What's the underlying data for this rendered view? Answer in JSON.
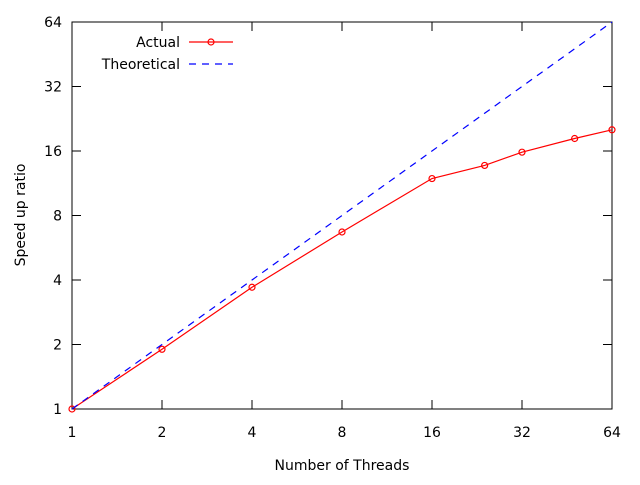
{
  "chart_data": {
    "type": "line",
    "title": "",
    "xlabel": "Number of Threads",
    "ylabel": "Speed up ratio",
    "x_scale": "log2",
    "y_scale": "log2",
    "xlim": [
      1,
      64
    ],
    "ylim": [
      1,
      64
    ],
    "x_ticks": [
      {
        "value": 1,
        "label": "1"
      },
      {
        "value": 2,
        "label": "2"
      },
      {
        "value": 4,
        "label": "4"
      },
      {
        "value": 8,
        "label": "8"
      },
      {
        "value": 16,
        "label": "16"
      },
      {
        "value": 32,
        "label": "32"
      },
      {
        "value": 64,
        "label": "64"
      }
    ],
    "y_ticks": [
      {
        "value": 1,
        "label": "1"
      },
      {
        "value": 2,
        "label": "2"
      },
      {
        "value": 4,
        "label": "4"
      },
      {
        "value": 8,
        "label": "8"
      },
      {
        "value": 16,
        "label": "16"
      },
      {
        "value": 32,
        "label": "32"
      },
      {
        "value": 64,
        "label": "64"
      }
    ],
    "grid": false,
    "legend_position": "top-left",
    "series": [
      {
        "name": "Actual",
        "color": "#ff0000",
        "style": "solid",
        "marker": "circle",
        "x": [
          1,
          2,
          4,
          8,
          16,
          24,
          32,
          48,
          64
        ],
        "y": [
          1,
          1.9,
          3.7,
          6.7,
          11.9,
          13.7,
          15.8,
          18.3,
          20.1
        ]
      },
      {
        "name": "Theoretical",
        "color": "#0000ff",
        "style": "dashed",
        "marker": "none",
        "x": [
          1,
          64
        ],
        "y": [
          1,
          64
        ]
      }
    ]
  }
}
